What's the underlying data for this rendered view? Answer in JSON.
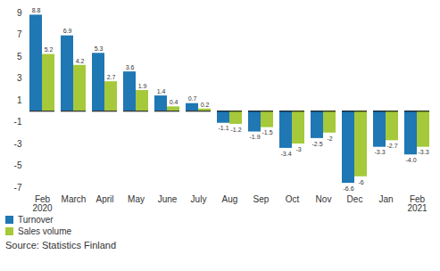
{
  "chart_data": {
    "type": "bar",
    "categories": [
      "Feb\n2020",
      "March",
      "April",
      "May",
      "June",
      "July",
      "Aug",
      "Sep",
      "Oct",
      "Nov",
      "Dec",
      "Jan",
      "Feb\n2021"
    ],
    "series": [
      {
        "name": "Turnover",
        "color": "#1f77b4",
        "values": [
          8.8,
          6.9,
          5.3,
          3.6,
          1.4,
          0.7,
          -1.1,
          -1.9,
          -3.4,
          -2.5,
          -6.6,
          -3.3,
          -4.0
        ],
        "value_labels": [
          "8.8",
          "6.9",
          "5.3",
          "3.6",
          "1.4",
          "0.7",
          "-1.1",
          "-1.9",
          "-3.4",
          "-2.5",
          "-6.6",
          "-3.3",
          "-4.0"
        ]
      },
      {
        "name": "Sales volume",
        "color": "#a5c93a",
        "values": [
          5.2,
          4.2,
          2.7,
          1.9,
          0.4,
          0.2,
          -1.2,
          -1.5,
          -3.0,
          -2.0,
          -6.0,
          -2.7,
          -3.3
        ]
      }
    ],
    "ylim": [
      -7,
      9
    ],
    "yticks": [
      -7,
      -5,
      -3,
      -1,
      1,
      3,
      5,
      7,
      9
    ],
    "grid": false,
    "legend": "bottom-left",
    "data_labels": true,
    "source": "Source: Statistics Finland"
  }
}
